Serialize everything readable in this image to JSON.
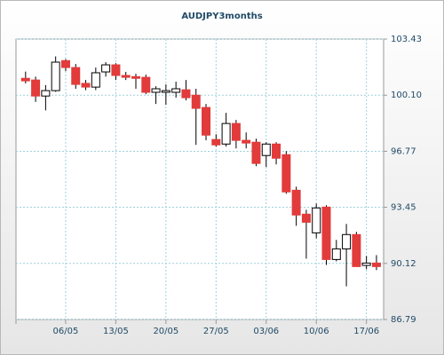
{
  "chart_data": {
    "type": "candlestick",
    "title": "AUDJPY3months",
    "categories": [
      null,
      null,
      null,
      null,
      "06/05",
      null,
      null,
      null,
      null,
      "13/05",
      null,
      null,
      null,
      null,
      "20/05",
      null,
      null,
      null,
      null,
      "27/05",
      null,
      null,
      null,
      null,
      "03/06",
      null,
      null,
      null,
      null,
      "10/06",
      null,
      null,
      null,
      null,
      "17/06",
      null
    ],
    "open": [
      101.1,
      101.0,
      100.05,
      100.37,
      102.15,
      101.74,
      100.8,
      100.58,
      101.48,
      101.9,
      101.27,
      101.2,
      101.16,
      100.27,
      100.27,
      100.27,
      100.42,
      100.1,
      99.37,
      97.47,
      97.2,
      98.42,
      97.42,
      97.31,
      96.52,
      97.2,
      96.57,
      94.46,
      93.04,
      91.93,
      93.46,
      90.35,
      90.98,
      91.83,
      90.0,
      90.14
    ],
    "high": [
      101.5,
      101.2,
      100.7,
      102.4,
      102.25,
      101.95,
      101.0,
      101.74,
      102.06,
      102.0,
      101.48,
      101.37,
      101.32,
      100.63,
      100.74,
      100.9,
      101.0,
      100.48,
      99.58,
      97.78,
      99.05,
      98.63,
      97.89,
      97.52,
      97.31,
      97.31,
      96.78,
      94.67,
      93.3,
      93.67,
      93.57,
      91.51,
      92.46,
      91.99,
      90.56,
      90.61
    ],
    "low": [
      100.8,
      99.7,
      99.2,
      100.3,
      101.53,
      100.48,
      100.4,
      100.4,
      101.2,
      101.0,
      101.0,
      100.48,
      100.16,
      99.58,
      99.53,
      99.95,
      99.79,
      97.15,
      97.42,
      97.05,
      97.05,
      96.94,
      96.94,
      95.89,
      95.84,
      95.99,
      94.25,
      92.35,
      90.4,
      91.61,
      90.03,
      90.24,
      88.76,
      90.03,
      89.77,
      89.72
    ],
    "close": [
      100.95,
      100.05,
      100.37,
      102.06,
      101.74,
      100.74,
      100.58,
      101.43,
      101.9,
      101.27,
      101.16,
      101.1,
      100.27,
      100.48,
      100.37,
      100.48,
      99.95,
      99.32,
      97.73,
      97.15,
      98.42,
      97.42,
      97.26,
      96.05,
      97.2,
      96.36,
      94.36,
      92.99,
      92.56,
      93.41,
      90.35,
      90.98,
      91.83,
      89.93,
      90.14,
      89.93
    ],
    "up_color": "#ffffff",
    "down_color": "#e23b3b",
    "ylim": [
      86.79,
      103.43
    ],
    "yticks": [
      86.79,
      90.12,
      93.45,
      96.77,
      {
        "value": 100.1,
        "label": "100.10"
      },
      103.43
    ],
    "grid": true
  }
}
